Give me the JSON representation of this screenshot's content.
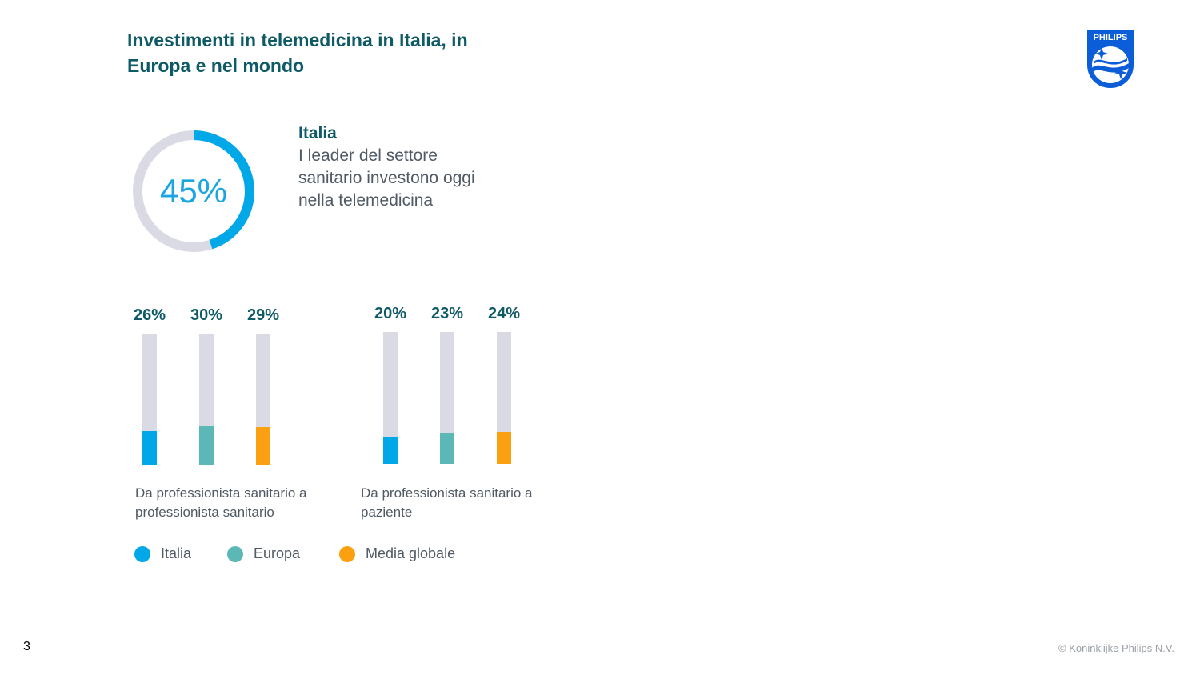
{
  "title": "Investimenti in telemedicina in Italia, in Europa e nel mondo",
  "logo_text": "PHILIPS",
  "colors": {
    "italia": "#00a8e8",
    "europa": "#5cb8b6",
    "globale": "#fba011",
    "track": "#d9dae3"
  },
  "highlight": {
    "value": 45,
    "label": "45%",
    "heading": "Italia",
    "text": "I leader del settore sanitario investono oggi nella telemedicina"
  },
  "chart_data": {
    "type": "bar",
    "series_names": [
      "Italia",
      "Europa",
      "Media globale"
    ],
    "groups": [
      {
        "label": "Da professionista sanitario a professionista sanitario",
        "values": [
          26,
          30,
          29
        ],
        "labels": [
          "26%",
          "30%",
          "29%"
        ]
      },
      {
        "label": "Da professionista sanitario a paziente",
        "values": [
          20,
          23,
          24
        ],
        "labels": [
          "20%",
          "23%",
          "24%"
        ]
      }
    ],
    "ylim": [
      0,
      100
    ]
  },
  "legend": [
    "Italia",
    "Europa",
    "Media globale"
  ],
  "page_number": "3",
  "copyright": "© Koninklijke Philips N.V."
}
